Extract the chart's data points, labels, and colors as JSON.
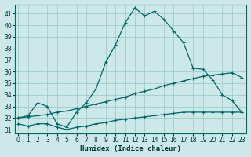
{
  "title": "",
  "xlabel": "Humidex (Indice chaleur)",
  "ylabel": "",
  "background_color": "#cce8e8",
  "grid_color": "#a0cccc",
  "line_color": "#006666",
  "x_ticks": [
    0,
    1,
    2,
    3,
    4,
    5,
    6,
    7,
    8,
    9,
    10,
    11,
    12,
    13,
    14,
    15,
    16,
    17,
    18,
    19,
    20,
    21,
    22,
    23
  ],
  "y_ticks": [
    31,
    32,
    33,
    34,
    35,
    36,
    37,
    38,
    39,
    40,
    41
  ],
  "ylim": [
    30.7,
    41.8
  ],
  "xlim": [
    -0.3,
    23.5
  ],
  "series": [
    {
      "x": [
        0,
        1,
        2,
        3,
        4,
        5,
        6,
        7,
        8,
        9,
        10,
        11,
        12,
        13,
        14,
        15,
        16,
        17,
        18,
        19,
        20,
        21,
        22,
        23
      ],
      "y": [
        32.0,
        32.2,
        33.3,
        33.0,
        31.5,
        31.2,
        32.5,
        33.3,
        34.5,
        36.8,
        38.3,
        40.2,
        41.5,
        40.8,
        41.2,
        40.5,
        39.5,
        38.5,
        36.3,
        36.2,
        35.3,
        34.0,
        33.5,
        32.5
      ]
    },
    {
      "x": [
        0,
        1,
        2,
        3,
        4,
        5,
        6,
        7,
        8,
        9,
        10,
        11,
        12,
        13,
        14,
        15,
        16,
        17,
        18,
        19,
        20,
        21,
        22,
        23
      ],
      "y": [
        32.0,
        32.1,
        32.2,
        32.3,
        32.5,
        32.6,
        32.8,
        33.0,
        33.2,
        33.4,
        33.6,
        33.8,
        34.1,
        34.3,
        34.5,
        34.8,
        35.0,
        35.2,
        35.4,
        35.6,
        35.7,
        35.8,
        35.9,
        35.5
      ]
    },
    {
      "x": [
        0,
        1,
        2,
        3,
        4,
        5,
        6,
        7,
        8,
        9,
        10,
        11,
        12,
        13,
        14,
        15,
        16,
        17,
        18,
        19,
        20,
        21,
        22,
        23
      ],
      "y": [
        31.5,
        31.3,
        31.5,
        31.5,
        31.2,
        31.0,
        31.2,
        31.3,
        31.5,
        31.6,
        31.8,
        31.9,
        32.0,
        32.1,
        32.2,
        32.3,
        32.4,
        32.5,
        32.5,
        32.5,
        32.5,
        32.5,
        32.5,
        32.5
      ]
    }
  ]
}
